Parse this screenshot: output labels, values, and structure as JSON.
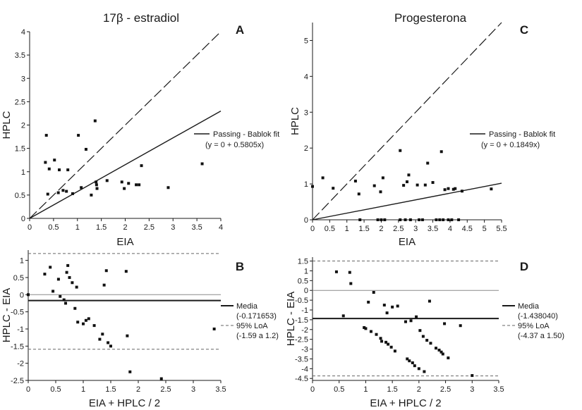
{
  "column_titles": [
    "17β - estradiol",
    "Progesterona"
  ],
  "chart_data": [
    {
      "type": "scatter",
      "panel": "A",
      "xlabel": "EIA",
      "ylabel": "HPLC",
      "xlim": [
        0,
        4
      ],
      "ylim": [
        0,
        4
      ],
      "xticks": [
        "0",
        "0.5",
        "1",
        "1.5",
        "2",
        "2.5",
        "3",
        "3.5",
        "4"
      ],
      "yticks": [
        "0",
        "0.5",
        "1",
        "1.5",
        "2",
        "2.5",
        "3",
        "3.5",
        "4"
      ],
      "points": [
        [
          0.33,
          1.2
        ],
        [
          0.35,
          1.78
        ],
        [
          0.38,
          0.52
        ],
        [
          0.41,
          1.06
        ],
        [
          0.52,
          1.25
        ],
        [
          0.6,
          0.55
        ],
        [
          0.62,
          1.04
        ],
        [
          0.7,
          0.6
        ],
        [
          0.77,
          0.58
        ],
        [
          0.8,
          1.04
        ],
        [
          0.9,
          0.53
        ],
        [
          1.02,
          1.78
        ],
        [
          1.08,
          0.66
        ],
        [
          1.18,
          1.48
        ],
        [
          1.29,
          0.5
        ],
        [
          1.37,
          2.09
        ],
        [
          1.39,
          0.78
        ],
        [
          1.4,
          0.72
        ],
        [
          1.41,
          0.64
        ],
        [
          1.62,
          0.81
        ],
        [
          1.93,
          0.78
        ],
        [
          1.98,
          0.64
        ],
        [
          2.07,
          0.75
        ],
        [
          2.23,
          0.72
        ],
        [
          2.29,
          0.72
        ],
        [
          2.34,
          1.13
        ],
        [
          2.9,
          0.66
        ],
        [
          3.61,
          1.17
        ]
      ],
      "lines": [
        {
          "style": "dashed",
          "x": [
            0,
            4
          ],
          "y": [
            0,
            4
          ]
        },
        {
          "style": "solid",
          "name": "Passing - Bablok fit",
          "x": [
            0,
            4
          ],
          "y": [
            0,
            2.3
          ]
        }
      ],
      "legend": [
        "Passing - Bablok fit",
        "(y = 0 + 0.5805x)"
      ],
      "legend_position": "right"
    },
    {
      "type": "scatter",
      "panel": "B",
      "xlabel": "EIA + HPLC / 2",
      "ylabel": "HPLC - EIA",
      "xlim": [
        0,
        3.5
      ],
      "ylim": [
        -2.5,
        1.3
      ],
      "xticks": [
        "0",
        "0.5",
        "1",
        "1.5",
        "2",
        "2.5",
        "3",
        "3.5"
      ],
      "yticks": [
        "-2.5",
        "-2",
        "-1.5",
        "-1",
        "-0.5",
        "0",
        "0.5",
        "1"
      ],
      "points": [
        [
          0,
          0
        ],
        [
          0.3,
          0.6
        ],
        [
          0.4,
          0.8
        ],
        [
          0.45,
          0.1
        ],
        [
          0.55,
          0.45
        ],
        [
          0.58,
          -0.05
        ],
        [
          0.65,
          -0.15
        ],
        [
          0.68,
          -0.25
        ],
        [
          0.7,
          0.65
        ],
        [
          0.72,
          0.85
        ],
        [
          0.75,
          0.5
        ],
        [
          0.8,
          0.35
        ],
        [
          0.85,
          -0.4
        ],
        [
          0.88,
          0.22
        ],
        [
          0.9,
          -0.8
        ],
        [
          1.0,
          -0.85
        ],
        [
          1.05,
          -0.75
        ],
        [
          1.1,
          -0.7
        ],
        [
          1.2,
          -0.9
        ],
        [
          1.3,
          -1.3
        ],
        [
          1.35,
          -1.15
        ],
        [
          1.45,
          -1.4
        ],
        [
          1.5,
          -1.5
        ],
        [
          1.38,
          0.28
        ],
        [
          1.42,
          0.7
        ],
        [
          1.78,
          0.68
        ],
        [
          1.8,
          -1.2
        ],
        [
          1.85,
          -2.25
        ],
        [
          2.42,
          -2.45
        ],
        [
          3.38,
          -1.0
        ]
      ],
      "lines": [
        {
          "style": "solid",
          "name": "Media",
          "y": -0.171653
        },
        {
          "style": "dashed",
          "name": "95% LoA",
          "y": 1.2
        },
        {
          "style": "dashed",
          "name": "95% LoA",
          "y": -1.59
        }
      ],
      "legend": [
        "Media",
        "(-0.171653)",
        "95% LoA",
        "(-1.59 a 1.2)"
      ],
      "legend_position": "right"
    },
    {
      "type": "scatter",
      "panel": "C",
      "xlabel": "EIA",
      "ylabel": "HPLC",
      "xlim": [
        0,
        5.5
      ],
      "ylim": [
        0,
        5.5
      ],
      "xticks": [
        "0",
        "0.5",
        "1",
        "1.5",
        "2",
        "2.5",
        "3",
        "3.5",
        "4",
        "4.5",
        "5",
        "5.5"
      ],
      "yticks": [
        "0",
        "1",
        "2",
        "3",
        "4",
        "5"
      ],
      "points": [
        [
          0,
          0.93
        ],
        [
          0.3,
          1.17
        ],
        [
          0.6,
          0.88
        ],
        [
          1.25,
          1.08
        ],
        [
          1.35,
          0.72
        ],
        [
          1.8,
          0.95
        ],
        [
          1.98,
          0.78
        ],
        [
          2.05,
          1.17
        ],
        [
          2.55,
          1.93
        ],
        [
          2.65,
          0.96
        ],
        [
          2.75,
          1.06
        ],
        [
          2.8,
          1.25
        ],
        [
          3.05,
          0.97
        ],
        [
          3.28,
          0.97
        ],
        [
          3.35,
          1.58
        ],
        [
          3.5,
          1.04
        ],
        [
          3.75,
          1.9
        ],
        [
          3.85,
          0.84
        ],
        [
          3.95,
          0.87
        ],
        [
          4.1,
          0.85
        ],
        [
          4.15,
          0.87
        ],
        [
          4.35,
          0.8
        ],
        [
          5.2,
          0.86
        ],
        [
          1.38,
          0
        ],
        [
          1.9,
          0
        ],
        [
          2.0,
          0
        ],
        [
          2.1,
          0
        ],
        [
          2.55,
          0
        ],
        [
          2.7,
          0
        ],
        [
          2.85,
          0
        ],
        [
          3.1,
          0
        ],
        [
          3.2,
          0
        ],
        [
          3.6,
          0
        ],
        [
          3.7,
          0
        ],
        [
          3.8,
          0
        ],
        [
          3.95,
          0
        ],
        [
          4.05,
          0
        ],
        [
          4.25,
          0
        ]
      ],
      "lines": [
        {
          "style": "dashed",
          "x": [
            0,
            5.5
          ],
          "y": [
            0,
            5.5
          ]
        },
        {
          "style": "solid",
          "name": "Passing - Bablok fit",
          "x": [
            0,
            5.5
          ],
          "y": [
            0,
            1.02
          ]
        }
      ],
      "legend": [
        "Passing - Bablok fit",
        "(y = 0 + 0.1849x)"
      ],
      "legend_position": "right"
    },
    {
      "type": "scatter",
      "panel": "D",
      "xlabel": "EIA + HPLC / 2",
      "ylabel": "HPLC - EIA",
      "xlim": [
        0,
        3.5
      ],
      "ylim": [
        -4.6,
        1.7
      ],
      "xticks": [
        "0",
        "0.5",
        "1",
        "1.5",
        "2",
        "2.5",
        "3",
        "3.5"
      ],
      "yticks": [
        "1.5",
        "1",
        "0.5",
        "0",
        "-0.5",
        "-1",
        "-1.5",
        "-2",
        "-2.5",
        "-3",
        "-3.5",
        "-4",
        "-4.5"
      ],
      "points": [
        [
          0.45,
          0.95
        ],
        [
          0.58,
          -1.3
        ],
        [
          0.7,
          0.92
        ],
        [
          0.72,
          0.35
        ],
        [
          0.97,
          -1.9
        ],
        [
          1.0,
          -1.95
        ],
        [
          1.05,
          -0.6
        ],
        [
          1.1,
          -2.1
        ],
        [
          1.15,
          -0.1
        ],
        [
          1.2,
          -2.25
        ],
        [
          1.28,
          -2.45
        ],
        [
          1.3,
          -2.6
        ],
        [
          1.35,
          -0.75
        ],
        [
          1.38,
          -2.65
        ],
        [
          1.4,
          -1.15
        ],
        [
          1.42,
          -2.75
        ],
        [
          1.48,
          -2.9
        ],
        [
          1.5,
          -0.85
        ],
        [
          1.55,
          -3.1
        ],
        [
          1.6,
          -0.8
        ],
        [
          1.75,
          -1.6
        ],
        [
          1.78,
          -3.5
        ],
        [
          1.82,
          -3.6
        ],
        [
          1.85,
          -1.55
        ],
        [
          1.88,
          -3.7
        ],
        [
          1.92,
          -3.85
        ],
        [
          1.95,
          -1.35
        ],
        [
          2.0,
          -4.0
        ],
        [
          2.02,
          -2.05
        ],
        [
          2.08,
          -2.35
        ],
        [
          2.1,
          -4.15
        ],
        [
          2.15,
          -2.55
        ],
        [
          2.2,
          -0.55
        ],
        [
          2.22,
          -2.7
        ],
        [
          2.32,
          -2.95
        ],
        [
          2.38,
          -3.05
        ],
        [
          2.42,
          -3.15
        ],
        [
          2.45,
          -3.25
        ],
        [
          2.48,
          -1.7
        ],
        [
          2.55,
          -3.45
        ],
        [
          2.78,
          -1.8
        ],
        [
          3.0,
          -4.35
        ]
      ],
      "lines": [
        {
          "style": "solid",
          "name": "Media",
          "y": -1.43804
        },
        {
          "style": "dashed",
          "name": "95% LoA",
          "y": 1.5
        },
        {
          "style": "dashed",
          "name": "95% LoA",
          "y": -4.37
        }
      ],
      "legend": [
        "Media",
        "(-1.438040)",
        "95% LoA",
        "(-4.37 a 1.50)"
      ],
      "legend_position": "right"
    }
  ]
}
